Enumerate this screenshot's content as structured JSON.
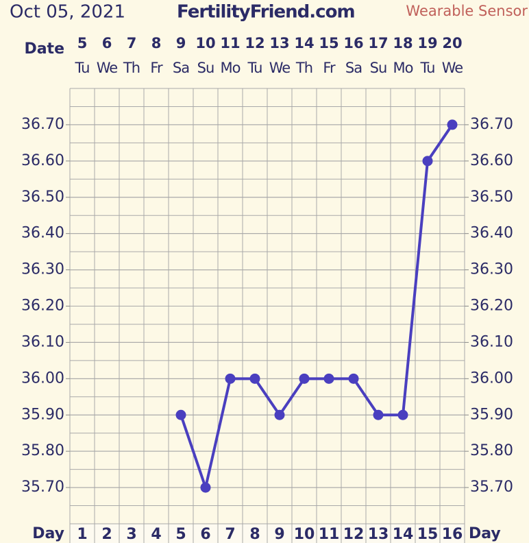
{
  "chart_data": {
    "type": "line",
    "date": "Oct 05, 2021",
    "title": "FertilityFriend.com",
    "subtitle": "Wearable Sensor",
    "date_label": "Date",
    "x_label": "Day",
    "dates": [
      5,
      6,
      7,
      8,
      9,
      10,
      11,
      12,
      13,
      14,
      15,
      16,
      17,
      18,
      19,
      20
    ],
    "weekdays": [
      "Tu",
      "We",
      "Th",
      "Fr",
      "Sa",
      "Su",
      "Mo",
      "Tu",
      "We",
      "Th",
      "Fr",
      "Sa",
      "Su",
      "Mo",
      "Tu",
      "We"
    ],
    "categories": [
      1,
      2,
      3,
      4,
      5,
      6,
      7,
      8,
      9,
      10,
      11,
      12,
      13,
      14,
      15,
      16
    ],
    "series": [
      {
        "color": "#4a3fbf",
        "values": [
          null,
          null,
          null,
          null,
          35.9,
          35.7,
          36.0,
          36.0,
          35.9,
          36.0,
          36.0,
          36.0,
          35.9,
          35.9,
          36.6,
          36.7
        ]
      }
    ],
    "ylim": [
      35.6,
      36.8
    ],
    "yticks": [
      {
        "value": 35.7,
        "label": "35.70"
      },
      {
        "value": 35.8,
        "label": "35.80"
      },
      {
        "value": 35.9,
        "label": "35.90"
      },
      {
        "value": 36.0,
        "label": "36.00"
      },
      {
        "value": 36.1,
        "label": "36.10"
      },
      {
        "value": 36.2,
        "label": "36.20"
      },
      {
        "value": 36.3,
        "label": "36.30"
      },
      {
        "value": 36.4,
        "label": "36.40"
      },
      {
        "value": 36.5,
        "label": "36.50"
      },
      {
        "value": 36.6,
        "label": "36.60"
      },
      {
        "value": 36.7,
        "label": "36.70"
      }
    ],
    "grid": true
  }
}
